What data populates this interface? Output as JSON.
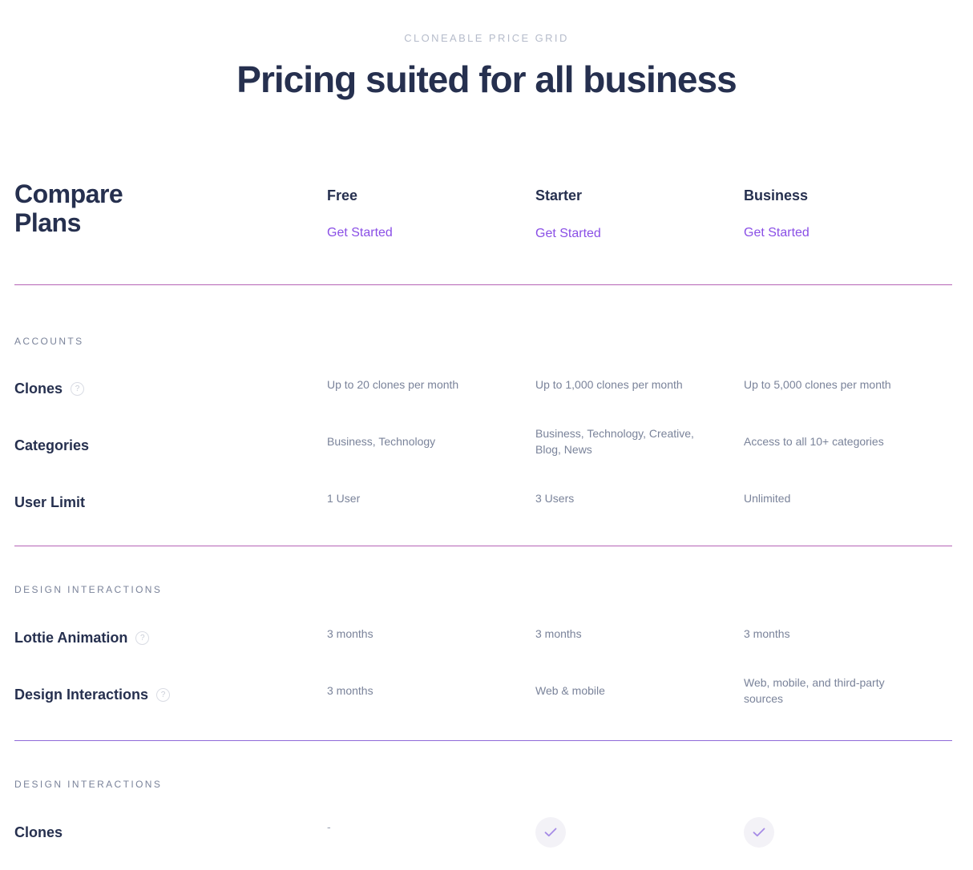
{
  "header": {
    "eyebrow": "CLONEABLE PRICE GRID",
    "title": "Pricing suited for all business"
  },
  "compare": {
    "title_line1": "Compare",
    "title_line2": "Plans"
  },
  "plans": [
    {
      "name": "Free",
      "cta": "Get Started"
    },
    {
      "name": "Starter",
      "cta": "Get Started"
    },
    {
      "name": "Business",
      "cta": "Get Started"
    }
  ],
  "sections": [
    {
      "label": "ACCOUNTS",
      "rows": [
        {
          "label": "Clones",
          "help_icon": true,
          "values": [
            "Up to 20 clones per month",
            "Up to 1,000 clones per month",
            "Up to 5,000 clones per month"
          ]
        },
        {
          "label": "Categories",
          "help_icon": false,
          "values": [
            "Business, Technology",
            "Business, Technology, Creative, Blog, News",
            "Access to all 10+ categories"
          ]
        },
        {
          "label": "User Limit",
          "help_icon": false,
          "values": [
            "1 User",
            "3 Users",
            "Unlimited"
          ]
        }
      ]
    },
    {
      "label": "DESIGN INTERACTIONS",
      "rows": [
        {
          "label": "Lottie Animation",
          "help_icon": true,
          "values": [
            "3 months",
            "3 months",
            "3 months"
          ]
        },
        {
          "label": "Design Interactions",
          "help_icon": true,
          "values": [
            "3 months",
            "Web & mobile",
            "Web, mobile, and third-party sources"
          ]
        }
      ]
    },
    {
      "label": "DESIGN INTERACTIONS",
      "rows": [
        {
          "label": "Clones",
          "help_icon": false,
          "values": [
            "-",
            "check",
            "check"
          ]
        }
      ]
    }
  ],
  "icons": {
    "help": "question-circle-icon",
    "check": "check-icon"
  },
  "colors": {
    "accent": "#8a4fe6",
    "divider": "#b564b6",
    "heading": "#26304f",
    "muted": "#7a839a"
  }
}
